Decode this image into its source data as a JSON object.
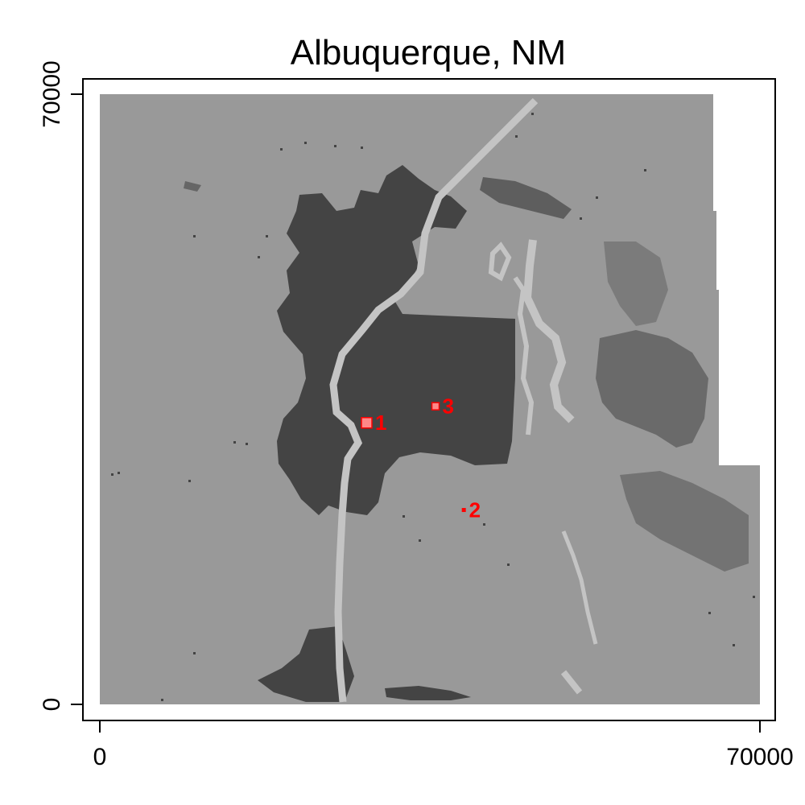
{
  "title": "Albuquerque, NM",
  "axes": {
    "x_range": [
      0,
      70000
    ],
    "y_range": [
      0,
      70000
    ],
    "x_ticks": [
      {
        "value": 0,
        "label": "0"
      },
      {
        "value": 70000,
        "label": "70000"
      }
    ],
    "y_ticks": [
      {
        "value": 0,
        "label": "0"
      },
      {
        "value": 70000,
        "label": "70000"
      }
    ]
  },
  "colors": {
    "background_land": "#999999",
    "urban": "#444444",
    "river_light": "#c4c4c4",
    "marker": "#ff0000",
    "marker_fill": "#ff8888",
    "frame": "#000000"
  },
  "points": [
    {
      "id": "1",
      "label": "1",
      "x": 28300,
      "y": 32300,
      "size": "large"
    },
    {
      "id": "2",
      "label": "2",
      "x": 38600,
      "y": 22300,
      "size": "small"
    },
    {
      "id": "3",
      "label": "3",
      "x": 35600,
      "y": 34200,
      "size": "medium"
    }
  ]
}
